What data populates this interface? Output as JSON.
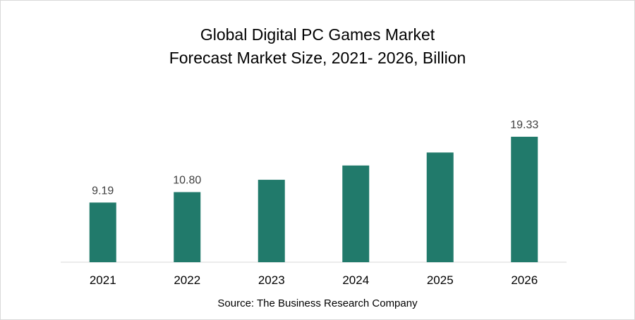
{
  "chart_data": {
    "type": "bar",
    "title_line1": "Global Digital PC Games Market",
    "title_line2": "Forecast Market Size, 2021- 2026, Billion",
    "categories": [
      "2021",
      "2022",
      "2023",
      "2024",
      "2025",
      "2026"
    ],
    "values": [
      9.19,
      10.8,
      12.7,
      14.9,
      16.9,
      19.33
    ],
    "data_labels": [
      "9.19",
      "10.80",
      "",
      "",
      "",
      "19.33"
    ],
    "xlabel": "",
    "ylabel": "",
    "ylim": [
      0,
      20
    ],
    "grid": false,
    "legend": "none",
    "bar_color": "#217a6b",
    "source": "Source: The Business Research Company"
  }
}
